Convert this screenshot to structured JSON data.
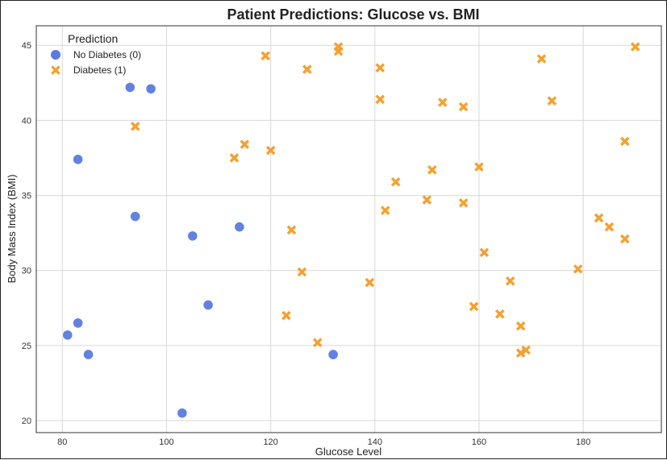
{
  "chart_data": {
    "type": "scatter",
    "title": "Patient Predictions: Glucose vs. BMI",
    "xlabel": "Glucose Level",
    "ylabel": "Body Mass Index (BMI)",
    "xlim": [
      75,
      195
    ],
    "ylim": [
      19.2,
      46.3
    ],
    "xticks": [
      80,
      100,
      120,
      140,
      160,
      180
    ],
    "yticks": [
      20,
      25,
      30,
      35,
      40,
      45
    ],
    "grid": true,
    "legend": {
      "title": "Prediction",
      "placement": "top-left",
      "entries": [
        "No Diabetes (0)",
        "Diabetes (1)"
      ]
    },
    "series": [
      {
        "name": "No Diabetes (0)",
        "marker": "circle",
        "color": "#5a7be0",
        "points": [
          [
            81,
            25.7
          ],
          [
            83,
            26.5
          ],
          [
            83,
            37.4
          ],
          [
            85,
            24.4
          ],
          [
            93,
            42.2
          ],
          [
            94,
            33.6
          ],
          [
            97,
            42.1
          ],
          [
            103,
            20.5
          ],
          [
            105,
            32.3
          ],
          [
            108,
            27.7
          ],
          [
            114,
            32.9
          ],
          [
            132,
            24.4
          ]
        ]
      },
      {
        "name": "Diabetes (1)",
        "marker": "x",
        "color": "#f6a030",
        "points": [
          [
            94,
            39.6
          ],
          [
            113,
            37.5
          ],
          [
            115,
            38.4
          ],
          [
            119,
            44.3
          ],
          [
            120,
            38.0
          ],
          [
            123,
            27.0
          ],
          [
            124,
            32.7
          ],
          [
            126,
            29.9
          ],
          [
            127,
            43.4
          ],
          [
            129,
            25.2
          ],
          [
            133,
            44.9
          ],
          [
            133,
            44.6
          ],
          [
            139,
            29.2
          ],
          [
            141,
            43.5
          ],
          [
            141,
            41.4
          ],
          [
            142,
            34.0
          ],
          [
            144,
            35.9
          ],
          [
            150,
            34.7
          ],
          [
            151,
            36.7
          ],
          [
            153,
            41.2
          ],
          [
            157,
            40.9
          ],
          [
            157,
            34.5
          ],
          [
            159,
            27.6
          ],
          [
            160,
            36.9
          ],
          [
            161,
            31.2
          ],
          [
            164,
            27.1
          ],
          [
            166,
            29.3
          ],
          [
            168,
            26.3
          ],
          [
            168,
            24.5
          ],
          [
            169,
            24.7
          ],
          [
            172,
            44.1
          ],
          [
            174,
            41.3
          ],
          [
            179,
            30.1
          ],
          [
            183,
            33.5
          ],
          [
            185,
            32.9
          ],
          [
            188,
            38.6
          ],
          [
            188,
            32.1
          ],
          [
            190,
            44.9
          ]
        ]
      }
    ]
  }
}
